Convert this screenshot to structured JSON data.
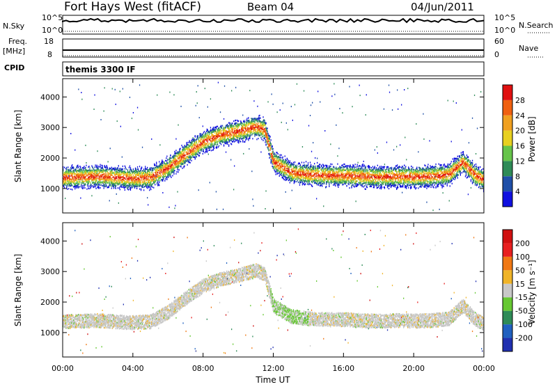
{
  "header": {
    "station": "Fort Hays West (fitACF)",
    "beam": "Beam 04",
    "date": "04/Jun/2011"
  },
  "strip": {
    "nsky_label": "N.Sky",
    "nsky_top": "10^5",
    "nsky_bottom": "10^0",
    "nsearch_label": "N.Search",
    "nsearch_top": "10^5",
    "nsearch_bottom": "10^0",
    "freq_label": "Freq.",
    "freq_unit": "[MHz]",
    "freq_top": "18",
    "freq_bottom": "8",
    "nave_label": "Nave",
    "nave_top": "60",
    "nave_bottom": "0",
    "cpid_label": "CPID",
    "cpid_value": "themis 3300 IF"
  },
  "colorbars": {
    "power": {
      "label": "Power [dB]",
      "ticks": [
        "4",
        "8",
        "12",
        "16",
        "20",
        "24",
        "28"
      ],
      "colors": [
        "#1010e0",
        "#1f4fa8",
        "#2e8b57",
        "#66c44a",
        "#e8d020",
        "#f0a020",
        "#f06010",
        "#e01010"
      ]
    },
    "velocity": {
      "label": "Velocity [m s⁻¹]",
      "ticks": [
        "200",
        "100",
        "50",
        "15",
        "-15",
        "-50",
        "-100",
        "-200"
      ],
      "colors": [
        "#2030b0",
        "#2060c0",
        "#2e8b57",
        "#66c832",
        "#c8c8c8",
        "#f0b428",
        "#f07814",
        "#e82020",
        "#d01010"
      ]
    }
  },
  "chart_data": [
    {
      "type": "heatmap",
      "name": "power",
      "ylabel": "Slant Range [km]",
      "ylim": [
        200,
        4600
      ],
      "y_ticks": [
        1000,
        2000,
        3000,
        4000
      ],
      "xlim": [
        0,
        24
      ],
      "band_center_km": [
        [
          0,
          1380
        ],
        [
          1,
          1400
        ],
        [
          2,
          1420
        ],
        [
          3,
          1380
        ],
        [
          4,
          1350
        ],
        [
          5,
          1380
        ],
        [
          6,
          1700
        ],
        [
          7,
          2150
        ],
        [
          8,
          2550
        ],
        [
          9,
          2780
        ],
        [
          10,
          2900
        ],
        [
          11,
          3050
        ],
        [
          11.5,
          2950
        ],
        [
          12,
          1900
        ],
        [
          13,
          1550
        ],
        [
          14,
          1480
        ],
        [
          15,
          1450
        ],
        [
          16,
          1450
        ],
        [
          17,
          1420
        ],
        [
          18,
          1400
        ],
        [
          19,
          1420
        ],
        [
          20,
          1400
        ],
        [
          21,
          1420
        ],
        [
          22,
          1480
        ],
        [
          22.8,
          1900
        ],
        [
          23.5,
          1450
        ],
        [
          24,
          1300
        ]
      ]
    },
    {
      "type": "heatmap",
      "name": "velocity",
      "ylabel": "Slant Range [km]",
      "ylim": [
        200,
        4600
      ],
      "y_ticks": [
        1000,
        2000,
        3000,
        4000
      ],
      "xlim": [
        0,
        24
      ],
      "x_ticks": [
        "00:00",
        "04:00",
        "08:00",
        "12:00",
        "16:00",
        "20:00",
        "00:00"
      ],
      "xlabel": "Time UT"
    }
  ]
}
